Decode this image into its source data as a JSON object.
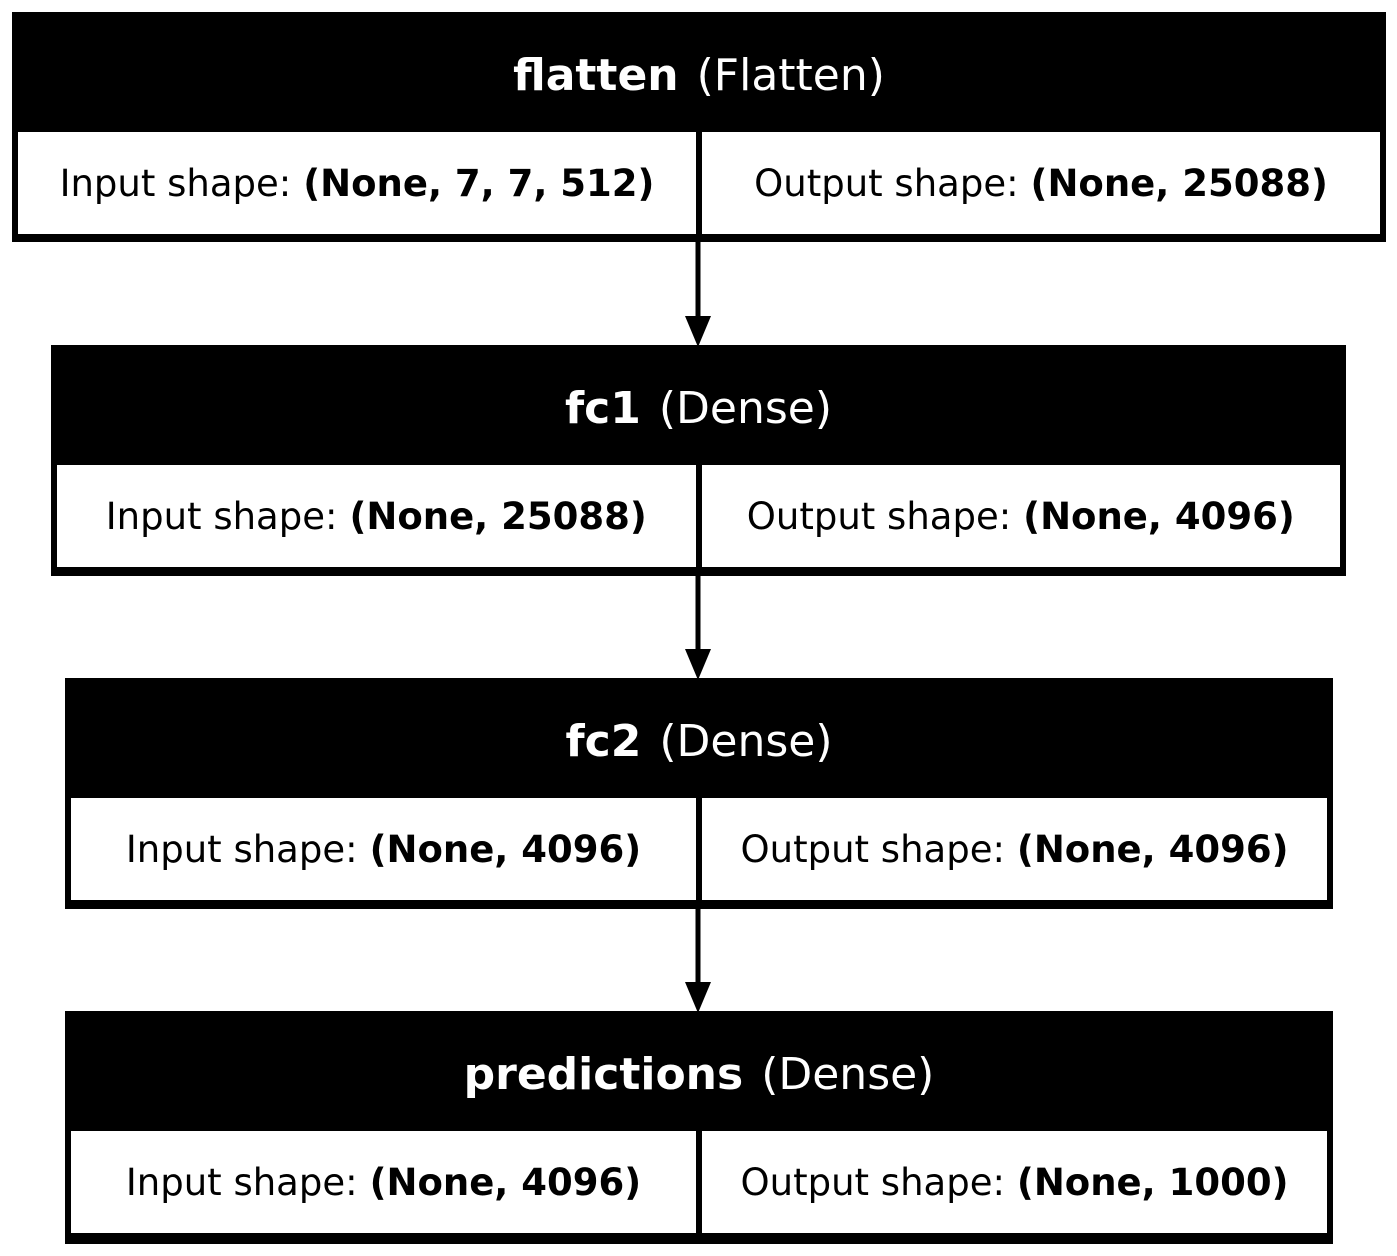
{
  "layers": [
    {
      "name": "flatten",
      "type": "(Flatten)",
      "input_label": "Input shape:",
      "input_shape": "(None, 7, 7, 512)",
      "output_label": "Output shape:",
      "output_shape": "(None, 25088)"
    },
    {
      "name": "fc1",
      "type": "(Dense)",
      "input_label": "Input shape:",
      "input_shape": "(None, 25088)",
      "output_label": "Output shape:",
      "output_shape": "(None, 4096)"
    },
    {
      "name": "fc2",
      "type": "(Dense)",
      "input_label": "Input shape:",
      "input_shape": "(None, 4096)",
      "output_label": "Output shape:",
      "output_shape": "(None, 4096)"
    },
    {
      "name": "predictions",
      "type": "(Dense)",
      "input_label": "Input shape:",
      "input_shape": "(None, 4096)",
      "output_label": "Output shape:",
      "output_shape": "(None, 1000)"
    }
  ],
  "colors": {
    "box": "#000000",
    "header_text": "#ffffff",
    "cell_bg": "#ffffff",
    "cell_text": "#000000"
  }
}
